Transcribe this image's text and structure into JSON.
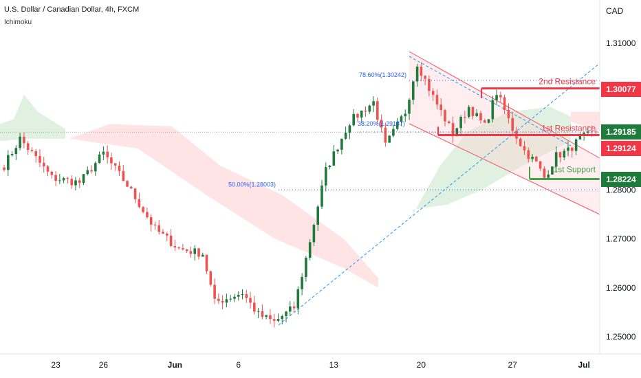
{
  "header": {
    "title": "U.S. Dollar / Canadian Dollar, 4h, FXCM",
    "indicator": "Ichimoku",
    "currency": "CAD"
  },
  "colors": {
    "bull": "#26a69a",
    "bullDark": "#1e7b3c",
    "bear": "#ef5350",
    "resistance": "#f23645",
    "support": "#43a047",
    "fib": "#2962ff",
    "cloudGreen": "#c8e6c9",
    "cloudRed": "#ffcdd2",
    "trend": "#2196f3",
    "channel": "#f7525f"
  },
  "chart_data": {
    "type": "candlestick",
    "ylim": [
      1.245,
      1.315
    ],
    "y_ticks": [
      "1.31000",
      "1.28000",
      "1.27000",
      "1.26000",
      "1.25000"
    ],
    "y_tick_values": [
      1.31,
      1.28,
      1.27,
      1.26,
      1.25
    ],
    "x_ticks": [
      "23",
      "26",
      "Jun",
      "6",
      "13",
      "20",
      "27",
      "Jul"
    ],
    "x_tick_index": [
      13,
      25,
      43,
      59,
      83,
      105,
      128,
      146
    ],
    "candle_count": 150,
    "key_points": [
      {
        "i": 0,
        "c": 1.285
      },
      {
        "i": 4,
        "c": 1.2905
      },
      {
        "i": 12,
        "c": 1.2825
      },
      {
        "i": 19,
        "c": 1.2815
      },
      {
        "i": 25,
        "c": 1.2875
      },
      {
        "i": 31,
        "c": 1.281
      },
      {
        "i": 38,
        "c": 1.272
      },
      {
        "i": 44,
        "c": 1.268
      },
      {
        "i": 50,
        "c": 1.267
      },
      {
        "i": 53,
        "c": 1.257
      },
      {
        "i": 60,
        "c": 1.259
      },
      {
        "i": 64,
        "c": 1.2545
      },
      {
        "i": 68,
        "c": 1.253
      },
      {
        "i": 73,
        "c": 1.256
      },
      {
        "i": 76,
        "c": 1.266
      },
      {
        "i": 81,
        "c": 1.284
      },
      {
        "i": 87,
        "c": 1.294
      },
      {
        "i": 93,
        "c": 1.298
      },
      {
        "i": 96,
        "c": 1.289
      },
      {
        "i": 101,
        "c": 1.296
      },
      {
        "i": 104,
        "c": 1.306
      },
      {
        "i": 108,
        "c": 1.299
      },
      {
        "i": 113,
        "c": 1.2915
      },
      {
        "i": 117,
        "c": 1.297
      },
      {
        "i": 121,
        "c": 1.293
      },
      {
        "i": 124,
        "c": 1.3
      },
      {
        "i": 128,
        "c": 1.2925
      },
      {
        "i": 131,
        "c": 1.288
      },
      {
        "i": 134,
        "c": 1.2855
      },
      {
        "i": 136,
        "c": 1.2825
      },
      {
        "i": 139,
        "c": 1.287
      },
      {
        "i": 142,
        "c": 1.288
      },
      {
        "i": 145,
        "c": 1.2905
      },
      {
        "i": 149,
        "c": 1.2918
      }
    ],
    "levels": [
      {
        "name": "2nd Resistance",
        "value": 1.30077,
        "price_label": "1.30077"
      },
      {
        "name": "1st Resistance",
        "value": 1.29124,
        "price_label": "1.29124"
      },
      {
        "name": "1st Support",
        "value": 1.28224,
        "price_label": "1.28224"
      }
    ],
    "current_price": {
      "value": 1.29185,
      "label": "1.29185"
    },
    "fib_levels": [
      {
        "label": "78.60%(1.30242)",
        "value": 1.30242
      },
      {
        "label": "38.20%(1.29187)",
        "value": 1.29187
      },
      {
        "label": "50.00%(1.28003)",
        "value": 1.28003
      }
    ],
    "grid": false
  }
}
